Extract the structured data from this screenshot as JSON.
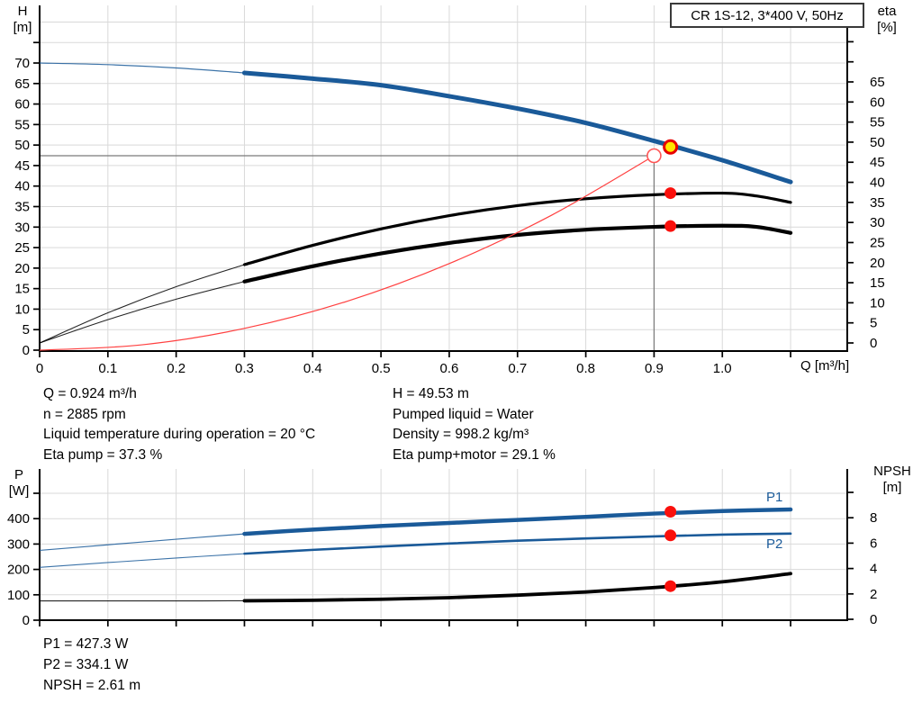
{
  "title_box": "CR 1S-12, 3*400 V, 50Hz",
  "info_top": {
    "col1": [
      "Q = 0.924 m³/h",
      "n = 2885 rpm",
      "Liquid temperature during operation = 20 °C",
      "Eta pump = 37.3 %"
    ],
    "col2": [
      "H = 49.53 m",
      "Pumped liquid = Water",
      "Density = 998.2 kg/m³",
      "Eta pump+motor = 29.1 %"
    ]
  },
  "info_bottom": [
    "P1 = 427.3 W",
    "P2 = 334.1 W",
    "NPSH = 2.61 m"
  ],
  "colors": {
    "curve_blue": "#1a5a99",
    "curve_black": "#000000",
    "system_curve_red": "#ff4040",
    "marker_red": "#fa100c",
    "marker_yellow_fill": "#ffe600",
    "marker_yellow_ring": "#e80000",
    "grid": "#d9d9d9",
    "crosshair": "#7a7a7a"
  },
  "chart_data": [
    {
      "type": "line",
      "title": "CR 1S-12, 3*400 V, 50Hz",
      "x_axis": {
        "label": "Q [m³/h]",
        "range": [
          0,
          1.183
        ],
        "ticks": [
          [
            0,
            "0"
          ],
          [
            0.1,
            "0.1"
          ],
          [
            0.2,
            "0.2"
          ],
          [
            0.3,
            "0.3"
          ],
          [
            0.4,
            "0.4"
          ],
          [
            0.5,
            "0.5"
          ],
          [
            0.6,
            "0.6"
          ],
          [
            0.7,
            "0.7"
          ],
          [
            0.8,
            "0.8"
          ],
          [
            0.9,
            "0.9"
          ],
          [
            1.0,
            "1.0"
          ],
          [
            1.1,
            ""
          ]
        ]
      },
      "y_left": {
        "label": "H",
        "unit": "[m]",
        "range": [
          0,
          83.6
        ],
        "ticks": [
          [
            0,
            "0"
          ],
          [
            5,
            "5"
          ],
          [
            10,
            "10"
          ],
          [
            15,
            "15"
          ],
          [
            20,
            "20"
          ],
          [
            25,
            "25"
          ],
          [
            30,
            "30"
          ],
          [
            35,
            "35"
          ],
          [
            40,
            "40"
          ],
          [
            45,
            "45"
          ],
          [
            50,
            "50"
          ],
          [
            55,
            "55"
          ],
          [
            60,
            "60"
          ],
          [
            65,
            "65"
          ],
          [
            70,
            "70"
          ],
          [
            75,
            ""
          ]
        ]
      },
      "y_right": {
        "label": "eta",
        "unit": "[%]",
        "range": [
          0,
          83.6
        ],
        "ticks": [
          [
            0,
            "0"
          ],
          [
            5,
            "5"
          ],
          [
            10,
            "10"
          ],
          [
            15,
            "15"
          ],
          [
            20,
            "20"
          ],
          [
            25,
            "25"
          ],
          [
            30,
            "30"
          ],
          [
            35,
            "35"
          ],
          [
            40,
            "40"
          ],
          [
            45,
            "45"
          ],
          [
            50,
            "50"
          ],
          [
            55,
            "55"
          ],
          [
            60,
            "60"
          ],
          [
            65,
            "65"
          ],
          [
            70,
            ""
          ],
          [
            75,
            ""
          ]
        ]
      },
      "series": [
        {
          "name": "H-curve",
          "axis": "left",
          "color": "#1a5a99",
          "width": 5,
          "thin_width": 1.2,
          "thin_until": 0.3,
          "points": [
            [
              0,
              70
            ],
            [
              0.1,
              69.6
            ],
            [
              0.2,
              68.8
            ],
            [
              0.3,
              67.6
            ],
            [
              0.4,
              66.2
            ],
            [
              0.5,
              64.6
            ],
            [
              0.6,
              61.9
            ],
            [
              0.7,
              58.9
            ],
            [
              0.8,
              55.4
            ],
            [
              0.9,
              51.0
            ],
            [
              1.0,
              46.3
            ],
            [
              1.1,
              41.0
            ]
          ]
        },
        {
          "name": "eta-pump",
          "axis": "right",
          "color": "#000000",
          "width": 3.2,
          "thin_width": 1.1,
          "thin_until": 0.3,
          "points": [
            [
              0,
              0
            ],
            [
              0.1,
              7.5
            ],
            [
              0.2,
              14.0
            ],
            [
              0.3,
              19.5
            ],
            [
              0.4,
              24.3
            ],
            [
              0.5,
              28.4
            ],
            [
              0.6,
              31.7
            ],
            [
              0.7,
              34.2
            ],
            [
              0.8,
              35.9
            ],
            [
              0.9,
              36.9
            ],
            [
              1.0,
              37.3
            ],
            [
              1.05,
              36.6
            ],
            [
              1.1,
              35.0
            ]
          ]
        },
        {
          "name": "eta-pump-motor",
          "axis": "right",
          "color": "#000000",
          "width": 4.2,
          "thin_width": 1.1,
          "thin_until": 0.3,
          "points": [
            [
              0,
              0
            ],
            [
              0.1,
              5.8
            ],
            [
              0.2,
              10.9
            ],
            [
              0.3,
              15.3
            ],
            [
              0.4,
              19.1
            ],
            [
              0.5,
              22.3
            ],
            [
              0.6,
              24.9
            ],
            [
              0.7,
              26.9
            ],
            [
              0.8,
              28.2
            ],
            [
              0.9,
              28.9
            ],
            [
              1.0,
              29.2
            ],
            [
              1.05,
              28.9
            ],
            [
              1.1,
              27.4
            ]
          ]
        },
        {
          "name": "system-curve",
          "axis": "left",
          "color": "#ff4040",
          "width": 1.2,
          "thin_width": 1.2,
          "thin_until": null,
          "points": [
            [
              0,
              0
            ],
            [
              0.15,
              1.3
            ],
            [
              0.3,
              5.3
            ],
            [
              0.45,
              11.9
            ],
            [
              0.6,
              21.1
            ],
            [
              0.75,
              32.9
            ],
            [
              0.9,
              47.4
            ]
          ]
        }
      ],
      "crosshair": {
        "q": 0.9,
        "v": 47.4,
        "axis": "left"
      },
      "markers": [
        {
          "name": "duty-point",
          "type": "open-red",
          "q": 0.9,
          "v": 47.4,
          "axis": "left"
        },
        {
          "name": "operating-point",
          "type": "yellow",
          "q": 0.924,
          "v": 49.53,
          "axis": "left"
        },
        {
          "name": "eta-pump-point",
          "type": "red",
          "q": 0.924,
          "v": 37.3,
          "axis": "right"
        },
        {
          "name": "eta-pump-motor-point",
          "type": "red",
          "q": 0.924,
          "v": 29.1,
          "axis": "right"
        }
      ]
    },
    {
      "type": "line",
      "title": "",
      "x_axis": {
        "label": "",
        "range": [
          0,
          1.183
        ],
        "ticks": [
          [
            0,
            ""
          ],
          [
            0.1,
            ""
          ],
          [
            0.2,
            ""
          ],
          [
            0.3,
            ""
          ],
          [
            0.4,
            ""
          ],
          [
            0.5,
            ""
          ],
          [
            0.6,
            ""
          ],
          [
            0.7,
            ""
          ],
          [
            0.8,
            ""
          ],
          [
            0.9,
            ""
          ],
          [
            1.0,
            ""
          ],
          [
            1.1,
            ""
          ]
        ]
      },
      "y_left": {
        "label": "P",
        "unit": "[W]",
        "range": [
          0,
          588
        ],
        "ticks": [
          [
            0,
            "0"
          ],
          [
            100,
            "100"
          ],
          [
            200,
            "200"
          ],
          [
            300,
            "300"
          ],
          [
            400,
            "400"
          ],
          [
            500,
            ""
          ]
        ]
      },
      "y_right": {
        "label": "NPSH",
        "unit": "[m]",
        "range": [
          0,
          11.7
        ],
        "ticks": [
          [
            0,
            "0"
          ],
          [
            2,
            "2"
          ],
          [
            4,
            "4"
          ],
          [
            6,
            "6"
          ],
          [
            8,
            "8"
          ],
          [
            10,
            ""
          ]
        ]
      },
      "curve_labels": [
        {
          "text": "P1"
        },
        {
          "text": "P2"
        }
      ],
      "series": [
        {
          "name": "P1-curve",
          "axis": "left",
          "color": "#1a5a99",
          "width": 4.5,
          "thin_width": 1.2,
          "thin_until": 0.3,
          "points": [
            [
              0,
              275
            ],
            [
              0.1,
              297
            ],
            [
              0.2,
              319
            ],
            [
              0.3,
              340
            ],
            [
              0.4,
              357
            ],
            [
              0.5,
              371
            ],
            [
              0.6,
              383
            ],
            [
              0.7,
              395
            ],
            [
              0.8,
              407
            ],
            [
              0.9,
              420
            ],
            [
              1.0,
              430
            ],
            [
              1.1,
              436
            ]
          ]
        },
        {
          "name": "P2-curve",
          "axis": "left",
          "color": "#1a5a99",
          "width": 2.6,
          "thin_width": 1.1,
          "thin_until": 0.3,
          "points": [
            [
              0,
              208
            ],
            [
              0.1,
              227
            ],
            [
              0.2,
              245
            ],
            [
              0.3,
              262
            ],
            [
              0.4,
              277
            ],
            [
              0.5,
              290
            ],
            [
              0.6,
              302
            ],
            [
              0.7,
              313
            ],
            [
              0.8,
              322
            ],
            [
              0.9,
              330
            ],
            [
              1.0,
              337
            ],
            [
              1.1,
              341
            ]
          ]
        },
        {
          "name": "NPSH-curve",
          "axis": "right",
          "color": "#000000",
          "width": 3.8,
          "thin_width": 1.1,
          "thin_until": 0.3,
          "points": [
            [
              0,
              1.45
            ],
            [
              0.1,
              1.45
            ],
            [
              0.2,
              1.45
            ],
            [
              0.3,
              1.46
            ],
            [
              0.4,
              1.5
            ],
            [
              0.5,
              1.58
            ],
            [
              0.6,
              1.7
            ],
            [
              0.7,
              1.9
            ],
            [
              0.8,
              2.15
            ],
            [
              0.9,
              2.5
            ],
            [
              1.0,
              2.95
            ],
            [
              1.1,
              3.6
            ]
          ]
        }
      ],
      "crosshair": null,
      "markers": [
        {
          "name": "p1-point",
          "type": "red",
          "q": 0.924,
          "v": 427.3,
          "axis": "left"
        },
        {
          "name": "p2-point",
          "type": "red",
          "q": 0.924,
          "v": 334.1,
          "axis": "left"
        },
        {
          "name": "npsh-point",
          "type": "red",
          "q": 0.924,
          "v": 2.61,
          "axis": "right"
        }
      ]
    }
  ]
}
